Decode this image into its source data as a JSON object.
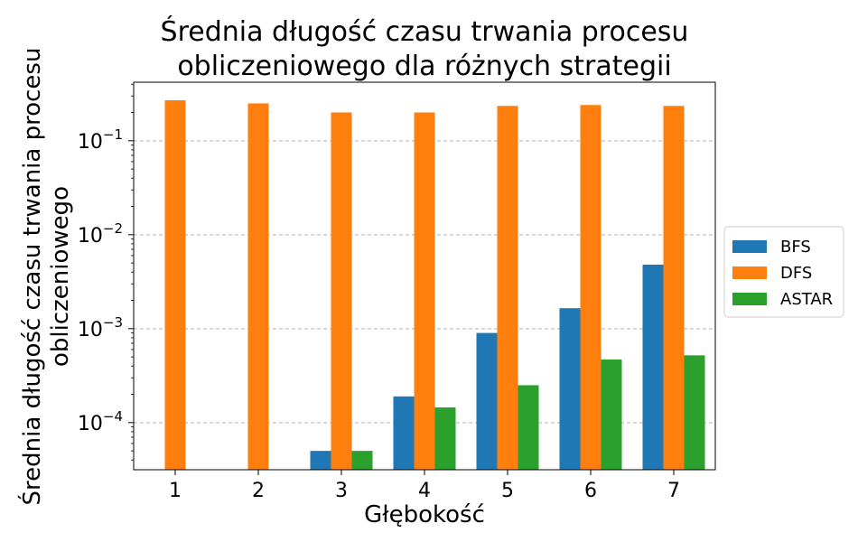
{
  "chart_data": {
    "type": "bar",
    "title": "Średnia długość czasu trwania procesu\nobliczeniowego dla różnych strategii",
    "xlabel": "Głębokość",
    "ylabel": "Średnia długość czasu trwania procesu\nobliczeniowego",
    "yscale": "log",
    "ylim": [
      3.15e-05,
      0.42
    ],
    "yticks": [
      {
        "value": 0.0001,
        "base": "10",
        "exp": "−4"
      },
      {
        "value": 0.001,
        "base": "10",
        "exp": "−3"
      },
      {
        "value": 0.01,
        "base": "10",
        "exp": "−2"
      },
      {
        "value": 0.1,
        "base": "10",
        "exp": "−1"
      }
    ],
    "grid": "horizontal dashed",
    "legend_position": "right, outside plot",
    "categories": [
      "1",
      "2",
      "3",
      "4",
      "5",
      "6",
      "7"
    ],
    "series": [
      {
        "name": "BFS",
        "color": "#1f77b4",
        "values": [
          null,
          null,
          5e-05,
          0.00019,
          0.0009,
          0.00165,
          0.0048
        ]
      },
      {
        "name": "DFS",
        "color": "#ff7f0e",
        "values": [
          0.27,
          0.25,
          0.2,
          0.2,
          0.235,
          0.24,
          0.235
        ]
      },
      {
        "name": "ASTAR",
        "color": "#2ca02c",
        "values": [
          null,
          null,
          5e-05,
          0.000145,
          0.00025,
          0.00047,
          0.00052
        ]
      }
    ]
  }
}
